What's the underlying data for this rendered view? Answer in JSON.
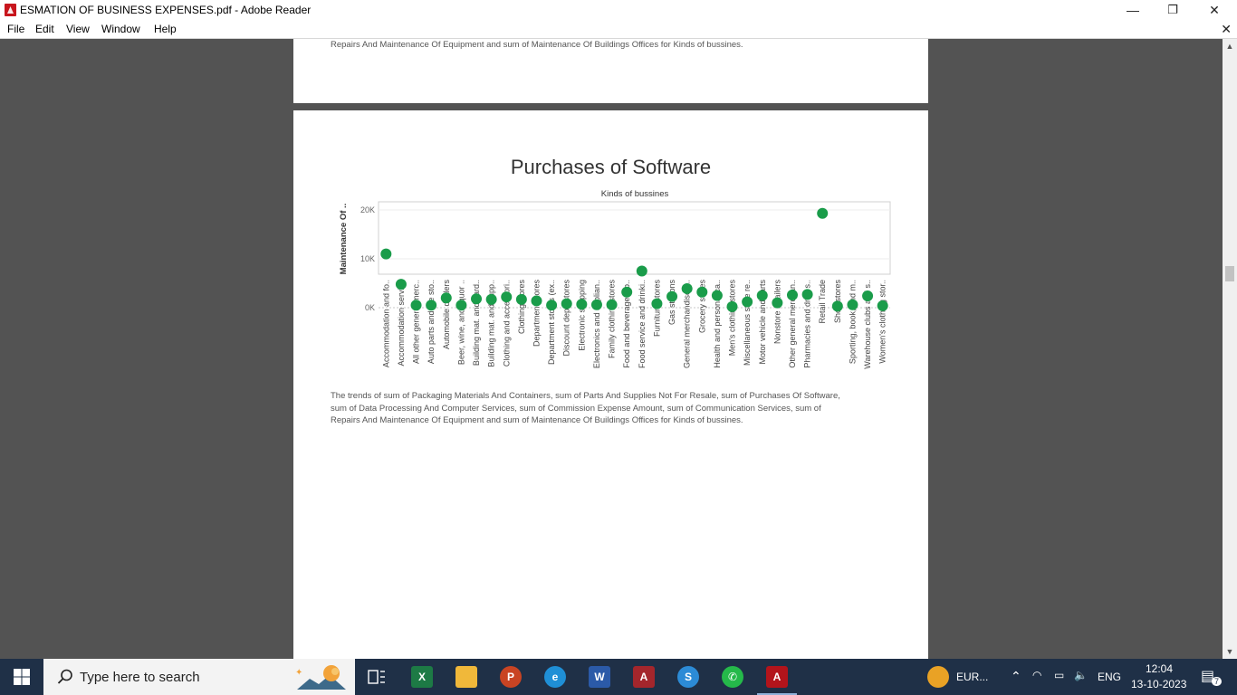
{
  "window": {
    "title": "ESMATION OF BUSINESS EXPENSES.pdf - Adobe Reader",
    "minimize": "—",
    "restore": "❐",
    "close": "✕",
    "doc_close": "✕"
  },
  "menu": {
    "items": [
      "File",
      "Edit",
      "View",
      "Window",
      "Help"
    ]
  },
  "page1": {
    "caption_tail": "Repairs And Maintenance Of Equipment and sum of Maintenance Of Buildings Offices for Kinds of bussines."
  },
  "page2": {
    "caption": [
      "The trends of sum of Packaging Materials And Containers, sum of Parts And Supplies Not For Resale, sum of Purchases Of Software,",
      "sum of Data Processing And Computer Services, sum of Commission Expense Amount, sum of Communication Services, sum of",
      "Repairs And Maintenance Of Equipment and sum of Maintenance Of Buildings Offices for Kinds of bussines."
    ]
  },
  "chart_data": {
    "type": "scatter",
    "title": "Purchases of Software",
    "xlabel": "Kinds of bussines",
    "ylabel": "Maintenance Of ..",
    "ylim": [
      0,
      20000
    ],
    "yticks": [
      {
        "value": 0,
        "label": "0K"
      },
      {
        "value": 10000,
        "label": "10K"
      },
      {
        "value": 20000,
        "label": "20K"
      }
    ],
    "color": "#1a9c4a",
    "categories": [
      "Accommodation and fo..",
      "Accommodation servic..",
      "All other general merc..",
      "Auto parts and tire sto..",
      "Automobile dealers",
      "Beer, wine, and liquor ..",
      "Building mat. and gard..",
      "Building mat. and supp..",
      "Clothing and accessori..",
      "Clothing stores",
      "Department stores",
      "Department stores (ex..",
      "Discount dept. stores",
      "Electronic shopping",
      "Electronics and applian..",
      "Family clothing stores",
      "Food and beverage sto..",
      "Food service and drinki..",
      "Furniture stores",
      "Gas stations",
      "General merchandise s..",
      "Grocery stores",
      "Health and personal ca..",
      "Men's clothing stores",
      "Miscellaneous store re..",
      "Motor vehicle and parts",
      "Nonstore retailers",
      "Other general merchan..",
      "Pharmacies and drug s..",
      "Retail Trade",
      "Shoe stores",
      "Sporting, book, and m..",
      "Warehouse clubs and s..",
      "Women's clothing stor.."
    ],
    "values": [
      11000,
      4800,
      500,
      500,
      2000,
      500,
      1800,
      1700,
      2200,
      1700,
      1400,
      500,
      800,
      700,
      600,
      600,
      3200,
      7500,
      800,
      2300,
      3900,
      3200,
      2500,
      200,
      1200,
      2500,
      1000,
      2600,
      2700,
      19300,
      300,
      600,
      2400,
      400
    ]
  },
  "taskbar": {
    "search_placeholder": "Type here to search",
    "apps": [
      "task-view",
      "Excel",
      "File Explorer",
      "PowerPoint",
      "Edge",
      "Word",
      "Access",
      "Skype",
      "WhatsApp",
      "Adobe Reader"
    ],
    "tray": {
      "weather": "EUR...",
      "lang": "ENG",
      "time": "12:04",
      "date": "13-10-2023",
      "notifications": "7"
    }
  }
}
